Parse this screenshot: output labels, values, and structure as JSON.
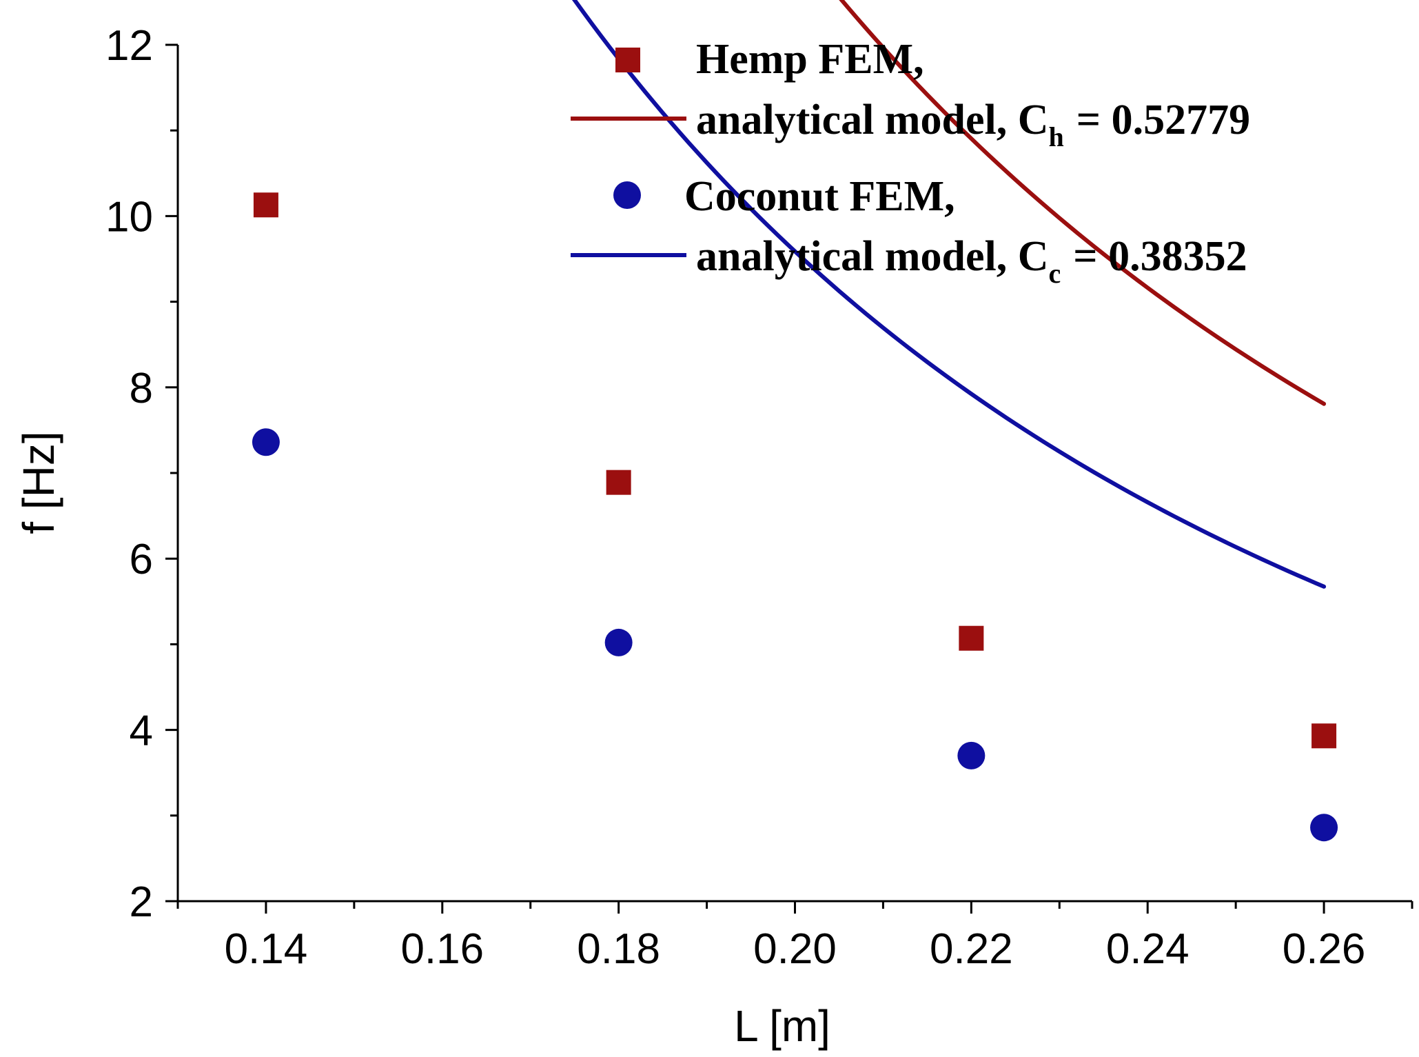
{
  "chart_data": {
    "type": "scatter",
    "title": "",
    "xlabel": "L [m]",
    "ylabel": "f [Hz]",
    "xlim": [
      0.13,
      0.27
    ],
    "ylim": [
      2,
      12
    ],
    "x_ticks": [
      "0.14",
      "0.16",
      "0.18",
      "0.20",
      "0.22",
      "0.24",
      "0.26"
    ],
    "x_tick_values": [
      0.14,
      0.16,
      0.18,
      0.2,
      0.22,
      0.24,
      0.26
    ],
    "y_ticks": [
      "2",
      "4",
      "6",
      "8",
      "10",
      "12"
    ],
    "y_tick_values": [
      2,
      4,
      6,
      8,
      10,
      12
    ],
    "legend_position": "top-right",
    "series": [
      {
        "name": "Hemp FEM,",
        "kind": "markers",
        "marker": "square",
        "color": "#9b0f0f",
        "x": [
          0.14,
          0.18,
          0.22,
          0.26
        ],
        "y": [
          10.13,
          6.89,
          5.07,
          3.93
        ]
      },
      {
        "name": "analytical model, C",
        "subscript": "h",
        "constant": "= 0.52779",
        "kind": "line",
        "coefficient": 0.52779,
        "color": "#9b0f0f",
        "x_range": [
          0.14,
          0.26
        ]
      },
      {
        "name": "Coconut FEM,",
        "kind": "markers",
        "marker": "circle",
        "color": "#0f0fa0",
        "x": [
          0.14,
          0.18,
          0.22,
          0.26
        ],
        "y": [
          7.36,
          5.02,
          3.7,
          2.86
        ]
      },
      {
        "name": "analytical model, C",
        "subscript": "c",
        "constant": "= 0.38352",
        "kind": "line",
        "coefficient": 0.38352,
        "color": "#0f0fa0",
        "x_range": [
          0.14,
          0.26
        ]
      }
    ]
  }
}
